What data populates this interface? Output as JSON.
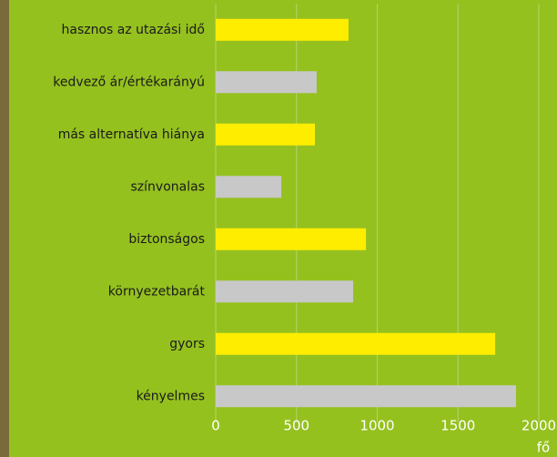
{
  "chart_data": {
    "type": "hbar",
    "categories": [
      "hasznos az utazási idő",
      "kedvező ár/értékarányú",
      "más alternatíva hiánya",
      "színvonalas",
      "biztonságos",
      "környezetbarát",
      "gyors",
      "kényelmes"
    ],
    "values": [
      822,
      625,
      614,
      406,
      930,
      851,
      1730,
      1859
    ],
    "colors": [
      "#ffed00",
      "#c8c8c8",
      "#ffed00",
      "#c8c8c8",
      "#ffed00",
      "#c8c8c8",
      "#ffed00",
      "#c8c8c8"
    ],
    "xlim": [
      0,
      2000
    ],
    "xticks": [
      0,
      500,
      1000,
      1500,
      2000
    ],
    "unit": "fő",
    "grid": true
  }
}
